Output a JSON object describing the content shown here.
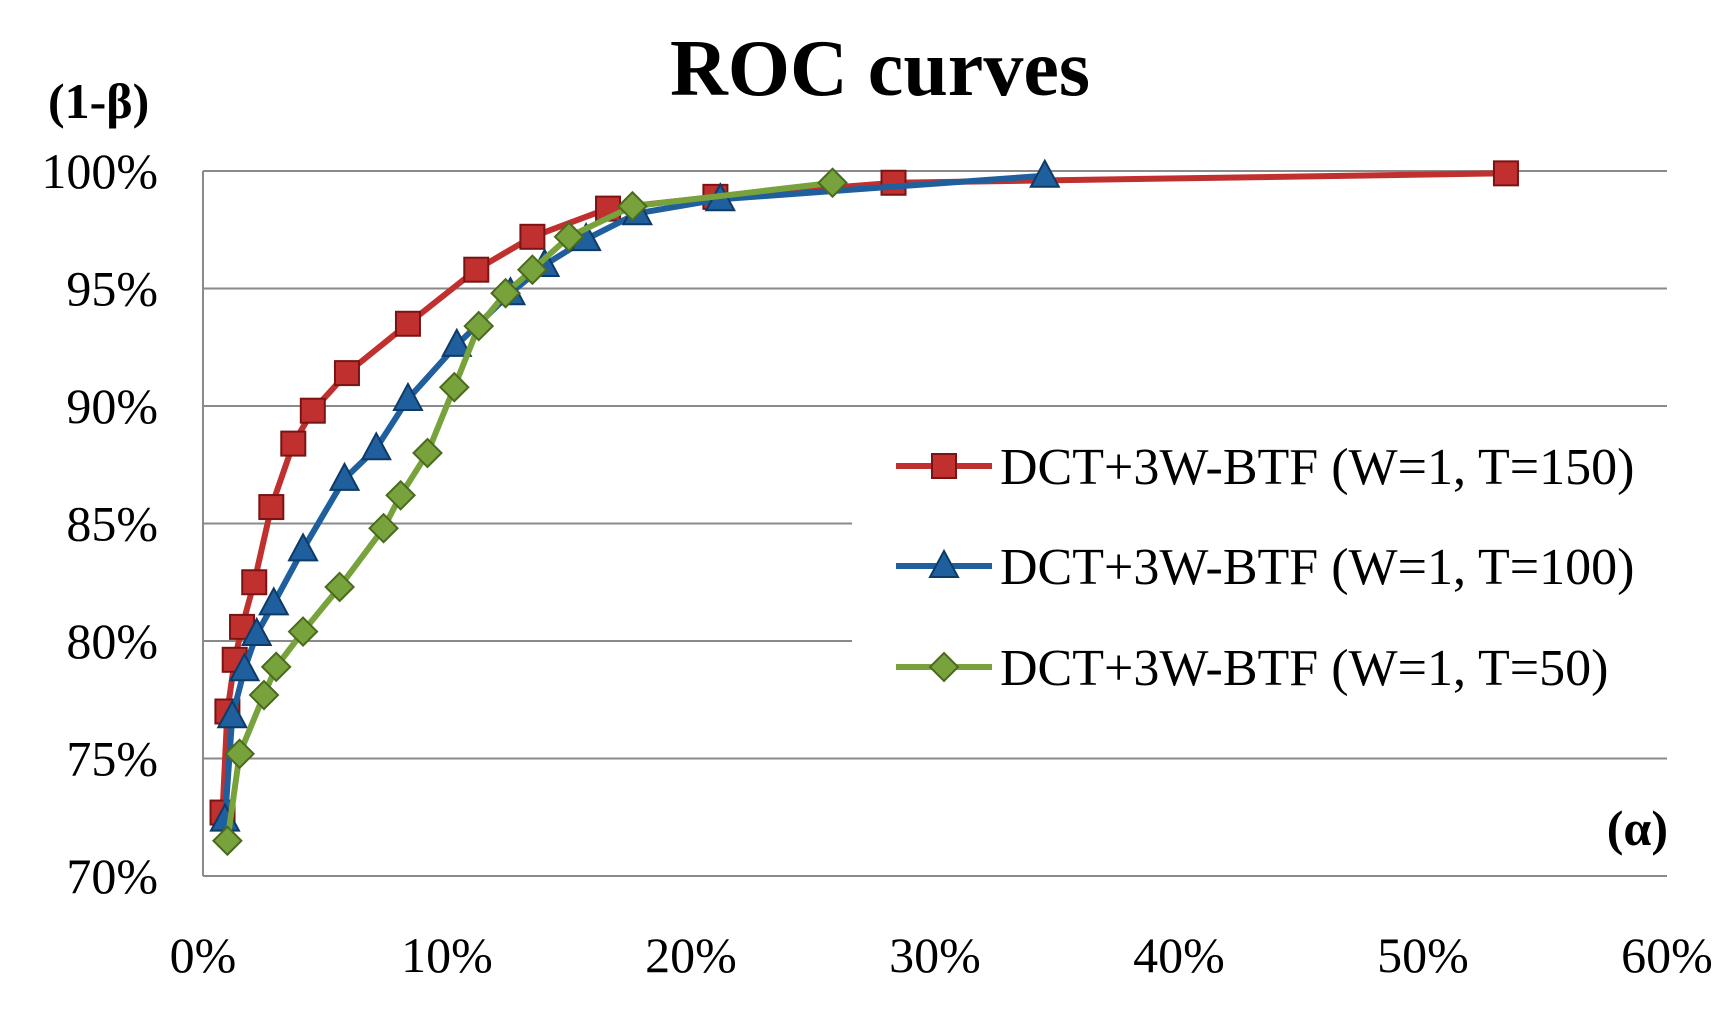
{
  "chart_data": {
    "type": "line",
    "title": "ROC curves",
    "ylabel": "(1-β)",
    "xlabel": "(α)",
    "xlim": [
      0,
      60
    ],
    "ylim": [
      70,
      100
    ],
    "x_ticks": [
      0,
      10,
      20,
      30,
      40,
      50,
      60
    ],
    "y_ticks": [
      70,
      75,
      80,
      85,
      90,
      95,
      100
    ],
    "x_tick_labels": [
      "0%",
      "10%",
      "20%",
      "30%",
      "40%",
      "50%",
      "60%"
    ],
    "y_tick_labels": [
      "70%",
      "75%",
      "80%",
      "85%",
      "90%",
      "95%",
      "100%"
    ],
    "grid": "horizontal",
    "legend_position": "right-center",
    "series": [
      {
        "name": "DCT+3W-BTF (W=1, T=150)",
        "color": "#c0302f",
        "marker": "square",
        "x": [
          0.8,
          1.0,
          1.3,
          1.6,
          2.1,
          2.8,
          3.7,
          4.5,
          5.9,
          8.4,
          11.2,
          13.5,
          16.6,
          21.0,
          28.3,
          53.4
        ],
        "y": [
          72.7,
          77.0,
          79.2,
          80.6,
          82.5,
          85.7,
          88.4,
          89.8,
          91.4,
          93.5,
          95.8,
          97.2,
          98.4,
          98.9,
          99.5,
          99.9
        ]
      },
      {
        "name": "DCT+3W-BTF (W=1, T=100)",
        "color": "#1f5f9e",
        "marker": "triangle",
        "x": [
          0.9,
          1.2,
          1.7,
          2.2,
          2.9,
          4.1,
          5.8,
          7.1,
          8.4,
          10.4,
          12.6,
          14.0,
          15.7,
          17.8,
          21.2,
          34.5
        ],
        "y": [
          72.4,
          76.8,
          78.8,
          80.3,
          81.6,
          83.9,
          86.9,
          88.2,
          90.3,
          92.6,
          94.8,
          96.0,
          97.1,
          98.2,
          98.8,
          99.8
        ]
      },
      {
        "name": "DCT+3W-BTF (W=1, T=50)",
        "color": "#78a23c",
        "marker": "diamond",
        "x": [
          1.0,
          1.5,
          2.5,
          3.0,
          4.1,
          5.6,
          7.4,
          8.1,
          9.2,
          10.3,
          11.3,
          12.4,
          13.5,
          15.0,
          17.6,
          25.8
        ],
        "y": [
          71.5,
          75.2,
          77.7,
          78.9,
          80.4,
          82.3,
          84.8,
          86.2,
          88.0,
          90.8,
          93.4,
          94.8,
          95.8,
          97.2,
          98.5,
          99.5
        ]
      }
    ]
  }
}
